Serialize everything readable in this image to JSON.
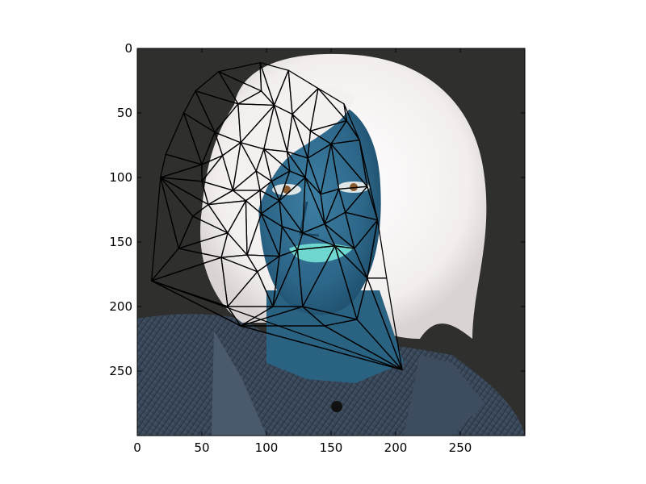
{
  "axes": {
    "x_ticks": [
      "0",
      "50",
      "100",
      "150",
      "200",
      "250"
    ],
    "y_ticks": [
      "0",
      "50",
      "100",
      "150",
      "200",
      "250"
    ],
    "x_range": [
      0,
      300
    ],
    "y_range": [
      0,
      300
    ],
    "y_inverted": true
  },
  "image": {
    "description_colors": {
      "background": "#2f2f2d",
      "hair": "#f3eeee",
      "skin": "#2e6b8e",
      "shirt": "#3b4a5c",
      "lips": "#6fd7cf"
    }
  },
  "mesh": {
    "points": [
      [
        63,
        18
      ],
      [
        95,
        11
      ],
      [
        117,
        17
      ],
      [
        140,
        31
      ],
      [
        160,
        43
      ],
      [
        45,
        33
      ],
      [
        36,
        50
      ],
      [
        22,
        82
      ],
      [
        18,
        100
      ],
      [
        11,
        180
      ],
      [
        32,
        155
      ],
      [
        43,
        130
      ],
      [
        50,
        90
      ],
      [
        60,
        65
      ],
      [
        78,
        43
      ],
      [
        96,
        33
      ],
      [
        106,
        44
      ],
      [
        120,
        51
      ],
      [
        134,
        64
      ],
      [
        150,
        74
      ],
      [
        162,
        56
      ],
      [
        172,
        71
      ],
      [
        178,
        107
      ],
      [
        186,
        133
      ],
      [
        193,
        178
      ],
      [
        205,
        249
      ],
      [
        80,
        215
      ],
      [
        70,
        200
      ],
      [
        65,
        162
      ],
      [
        85,
        160
      ],
      [
        110,
        161
      ],
      [
        124,
        156
      ],
      [
        153,
        153
      ],
      [
        168,
        155
      ],
      [
        178,
        178
      ],
      [
        170,
        210
      ],
      [
        145,
        215
      ],
      [
        128,
        200
      ],
      [
        105,
        200
      ],
      [
        93,
        173
      ],
      [
        74,
        110
      ],
      [
        92,
        95
      ],
      [
        104,
        103
      ],
      [
        118,
        95
      ],
      [
        130,
        100
      ],
      [
        142,
        113
      ],
      [
        156,
        109
      ],
      [
        161,
        127
      ],
      [
        145,
        136
      ],
      [
        128,
        143
      ],
      [
        112,
        138
      ],
      [
        96,
        128
      ],
      [
        84,
        118
      ],
      [
        70,
        143
      ],
      [
        55,
        121
      ],
      [
        50,
        103
      ],
      [
        66,
        83
      ],
      [
        80,
        73
      ],
      [
        98,
        78
      ],
      [
        116,
        80
      ],
      [
        132,
        85
      ],
      [
        110,
        118
      ],
      [
        95,
        110
      ]
    ],
    "triangles": [
      [
        0,
        1,
        15
      ],
      [
        0,
        15,
        14
      ],
      [
        0,
        14,
        5
      ],
      [
        1,
        2,
        16
      ],
      [
        1,
        16,
        15
      ],
      [
        2,
        3,
        17
      ],
      [
        2,
        17,
        16
      ],
      [
        3,
        4,
        20
      ],
      [
        3,
        20,
        18
      ],
      [
        3,
        18,
        17
      ],
      [
        4,
        20,
        21
      ],
      [
        5,
        14,
        13
      ],
      [
        5,
        13,
        6
      ],
      [
        6,
        13,
        12
      ],
      [
        6,
        12,
        7
      ],
      [
        7,
        12,
        8
      ],
      [
        8,
        12,
        55
      ],
      [
        8,
        55,
        54
      ],
      [
        8,
        54,
        11
      ],
      [
        8,
        11,
        10
      ],
      [
        8,
        10,
        9
      ],
      [
        9,
        10,
        28
      ],
      [
        9,
        28,
        27
      ],
      [
        9,
        27,
        26
      ],
      [
        9,
        26,
        25
      ],
      [
        10,
        11,
        53
      ],
      [
        10,
        53,
        28
      ],
      [
        11,
        54,
        53
      ],
      [
        12,
        13,
        56
      ],
      [
        12,
        56,
        55
      ],
      [
        13,
        14,
        57
      ],
      [
        13,
        57,
        56
      ],
      [
        14,
        15,
        16
      ],
      [
        14,
        16,
        57
      ],
      [
        16,
        17,
        59
      ],
      [
        16,
        59,
        58
      ],
      [
        16,
        58,
        57
      ],
      [
        17,
        18,
        60
      ],
      [
        17,
        60,
        59
      ],
      [
        18,
        19,
        60
      ],
      [
        18,
        20,
        19
      ],
      [
        19,
        20,
        21
      ],
      [
        19,
        21,
        22
      ],
      [
        19,
        22,
        46
      ],
      [
        19,
        46,
        45
      ],
      [
        19,
        45,
        60
      ],
      [
        21,
        22,
        23
      ],
      [
        22,
        23,
        47
      ],
      [
        22,
        47,
        46
      ],
      [
        23,
        24,
        34
      ],
      [
        23,
        34,
        33
      ],
      [
        23,
        33,
        47
      ],
      [
        24,
        25,
        34
      ],
      [
        25,
        34,
        35
      ],
      [
        25,
        35,
        36
      ],
      [
        25,
        36,
        26
      ],
      [
        26,
        27,
        38
      ],
      [
        26,
        38,
        37
      ],
      [
        26,
        37,
        36
      ],
      [
        27,
        28,
        39
      ],
      [
        27,
        39,
        38
      ],
      [
        28,
        29,
        39
      ],
      [
        28,
        53,
        29
      ],
      [
        29,
        53,
        52
      ],
      [
        29,
        52,
        51
      ],
      [
        29,
        51,
        30
      ],
      [
        29,
        30,
        39
      ],
      [
        30,
        31,
        38
      ],
      [
        30,
        38,
        39
      ],
      [
        30,
        50,
        31
      ],
      [
        30,
        51,
        50
      ],
      [
        31,
        49,
        32
      ],
      [
        31,
        50,
        49
      ],
      [
        31,
        32,
        37
      ],
      [
        31,
        37,
        38
      ],
      [
        32,
        33,
        34
      ],
      [
        32,
        34,
        35
      ],
      [
        32,
        35,
        37
      ],
      [
        35,
        36,
        37
      ],
      [
        32,
        48,
        33
      ],
      [
        32,
        49,
        48
      ],
      [
        33,
        48,
        47
      ],
      [
        40,
        41,
        62
      ],
      [
        40,
        62,
        52
      ],
      [
        40,
        52,
        54
      ],
      [
        40,
        54,
        55
      ],
      [
        40,
        55,
        56
      ],
      [
        40,
        56,
        57
      ],
      [
        40,
        57,
        41
      ],
      [
        41,
        57,
        58
      ],
      [
        41,
        58,
        42
      ],
      [
        41,
        42,
        62
      ],
      [
        42,
        58,
        43
      ],
      [
        43,
        58,
        59
      ],
      [
        43,
        59,
        44
      ],
      [
        44,
        59,
        60
      ],
      [
        44,
        60,
        45
      ],
      [
        42,
        43,
        61
      ],
      [
        42,
        61,
        62
      ],
      [
        43,
        44,
        61
      ],
      [
        44,
        45,
        48
      ],
      [
        44,
        48,
        49
      ],
      [
        44,
        49,
        61
      ],
      [
        45,
        46,
        48
      ],
      [
        46,
        47,
        48
      ],
      [
        49,
        50,
        61
      ],
      [
        50,
        51,
        61
      ],
      [
        51,
        52,
        62
      ],
      [
        51,
        62,
        61
      ],
      [
        52,
        53,
        54
      ]
    ]
  }
}
